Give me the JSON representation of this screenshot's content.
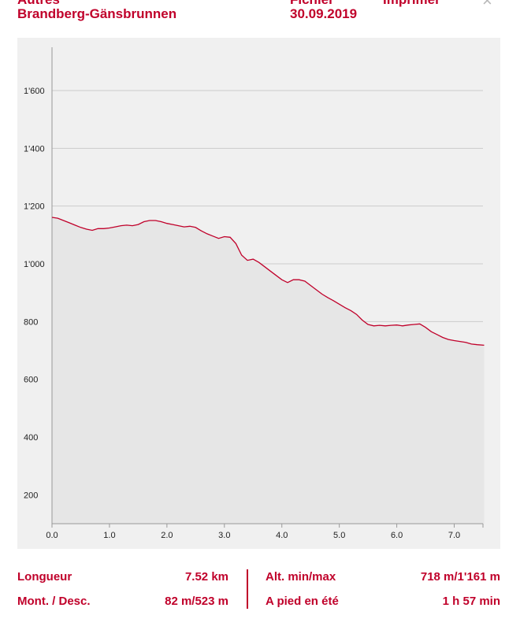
{
  "header": {
    "line1_left": "Autres",
    "route_name": "Brandberg-Gänsbrunnen",
    "line1_mid": "Fichier",
    "date": "30.09.2019",
    "line1_right": "Imprimer",
    "close_glyph": "×"
  },
  "colors": {
    "accent": "#c0002a",
    "panel": "#f0f0f0",
    "area": "#e6e6e6",
    "grid": "#cccccc"
  },
  "chart_data": {
    "type": "area",
    "title": "",
    "xlabel": "",
    "ylabel": "",
    "xlim": [
      0,
      7.5
    ],
    "ylim": [
      100,
      1750
    ],
    "grid": true,
    "x_ticks": [
      0,
      1,
      2,
      3,
      4,
      5,
      6,
      7
    ],
    "x_tick_labels": [
      "0.0",
      "1.0",
      "2.0",
      "3.0",
      "4.0",
      "5.0",
      "6.0",
      "7.0"
    ],
    "y_ticks": [
      200,
      400,
      600,
      800,
      1000,
      1200,
      1400,
      1600
    ],
    "y_tick_labels": [
      "200",
      "400",
      "600",
      "800",
      "1'000",
      "1'200",
      "1'400",
      "1'600"
    ],
    "series": [
      {
        "x": [
          0.0,
          0.1,
          0.2,
          0.3,
          0.4,
          0.5,
          0.6,
          0.7,
          0.8,
          0.9,
          1.0,
          1.1,
          1.2,
          1.3,
          1.4,
          1.5,
          1.6,
          1.7,
          1.8,
          1.9,
          2.0,
          2.1,
          2.2,
          2.3,
          2.4,
          2.5,
          2.6,
          2.7,
          2.8,
          2.9,
          3.0,
          3.1,
          3.2,
          3.3,
          3.4,
          3.5,
          3.6,
          3.7,
          3.8,
          3.9,
          4.0,
          4.1,
          4.2,
          4.3,
          4.4,
          4.5,
          4.6,
          4.7,
          4.8,
          4.9,
          5.0,
          5.1,
          5.2,
          5.3,
          5.4,
          5.5,
          5.6,
          5.7,
          5.8,
          5.9,
          6.0,
          6.1,
          6.2,
          6.3,
          6.4,
          6.5,
          6.6,
          6.7,
          6.8,
          6.9,
          7.0,
          7.1,
          7.2,
          7.3,
          7.4,
          7.52
        ],
        "y": [
          1161,
          1158,
          1150,
          1142,
          1134,
          1126,
          1120,
          1116,
          1122,
          1122,
          1124,
          1128,
          1132,
          1134,
          1132,
          1136,
          1146,
          1150,
          1150,
          1146,
          1140,
          1136,
          1132,
          1128,
          1130,
          1126,
          1114,
          1104,
          1096,
          1088,
          1094,
          1092,
          1070,
          1030,
          1012,
          1016,
          1005,
          990,
          975,
          960,
          945,
          935,
          945,
          945,
          940,
          925,
          910,
          895,
          883,
          872,
          860,
          848,
          838,
          825,
          805,
          790,
          785,
          787,
          785,
          787,
          788,
          785,
          788,
          790,
          792,
          780,
          765,
          755,
          745,
          738,
          734,
          731,
          728,
          722,
          720,
          718
        ]
      }
    ]
  },
  "stats": {
    "length_label": "Longueur",
    "length_value": "7.52 km",
    "updown_label": "Mont. / Desc.",
    "updown_value": "82 m/523 m",
    "altitude_label": "Alt. min/max",
    "altitude_value": "718 m/1'161 m",
    "walk_label": "A pied en été",
    "walk_value": "1 h 57 min"
  }
}
